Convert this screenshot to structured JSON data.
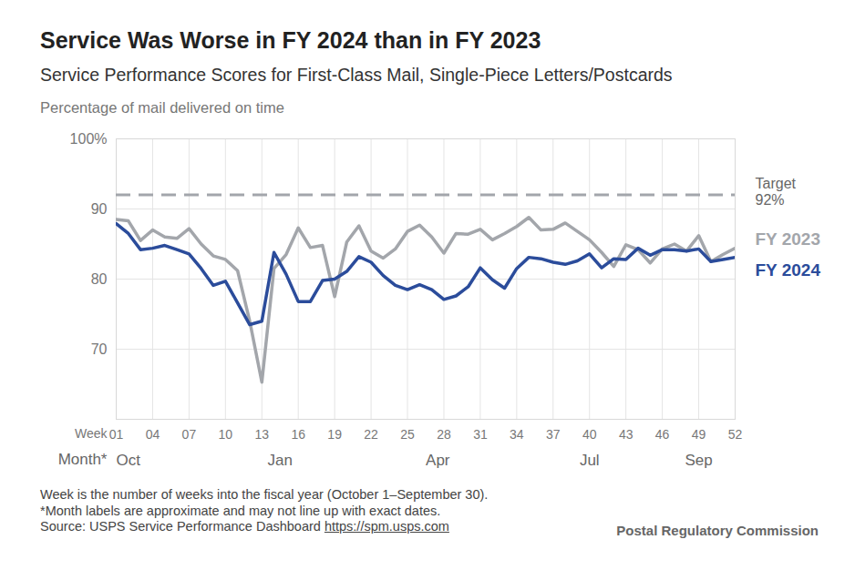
{
  "chart_data": {
    "type": "line",
    "title": "Service Was Worse in FY 2024 than in FY 2023",
    "subtitle": "Service Performance Scores for First-Class Mail, Single-Piece Letters/Postcards",
    "y_label": "Percentage of mail delivered on time",
    "x_label": "Week",
    "x": [
      1,
      2,
      3,
      4,
      5,
      6,
      7,
      8,
      9,
      10,
      11,
      12,
      13,
      14,
      15,
      16,
      17,
      18,
      19,
      20,
      21,
      22,
      23,
      24,
      25,
      26,
      27,
      28,
      29,
      30,
      31,
      32,
      33,
      34,
      35,
      36,
      37,
      38,
      39,
      40,
      41,
      42,
      43,
      44,
      45,
      46,
      47,
      48,
      49,
      50,
      51,
      52
    ],
    "series": [
      {
        "name": "FY 2023",
        "color": "#a3a6ab",
        "values": [
          88.5,
          88.3,
          85.5,
          87,
          86,
          85.8,
          87.2,
          85,
          83.3,
          82.8,
          81.2,
          74,
          65.3,
          81.5,
          83.5,
          87.3,
          84.5,
          84.8,
          77.5,
          85.3,
          87.6,
          84,
          83,
          84.3,
          86.8,
          87.7,
          86,
          83.7,
          86.5,
          86.4,
          87.1,
          85.6,
          86.5,
          87.5,
          88.8,
          87,
          87.1,
          88,
          86.8,
          85.6,
          83.8,
          81.8,
          84.9,
          84.2,
          82.3,
          84.3,
          85,
          84,
          86.2,
          82.5,
          83.5,
          84.4
        ]
      },
      {
        "name": "FY 2024",
        "color": "#2b4c9b",
        "values": [
          87.9,
          86.5,
          84.2,
          84.4,
          84.8,
          84.2,
          83.6,
          81.5,
          79.1,
          79.7,
          76.6,
          73.5,
          74,
          83.8,
          80.7,
          76.8,
          76.8,
          79.8,
          80,
          81.1,
          83.2,
          82.4,
          80.5,
          79.1,
          78.5,
          79.2,
          78.5,
          77.1,
          77.6,
          78.9,
          81.6,
          79.9,
          78.7,
          81.5,
          83.1,
          82.9,
          82.4,
          82.1,
          82.6,
          83.6,
          81.6,
          82.9,
          82.8,
          84.4,
          83.4,
          84.2,
          84.2,
          84,
          84.3,
          82.5,
          82.8,
          83.1
        ]
      }
    ],
    "xlim": [
      1,
      52
    ],
    "xticks": [
      {
        "value": 1,
        "label": "01"
      },
      {
        "value": 4,
        "label": "04"
      },
      {
        "value": 7,
        "label": "07"
      },
      10,
      13,
      16,
      19,
      22,
      25,
      28,
      31,
      34,
      37,
      40,
      43,
      46,
      49,
      52
    ],
    "ylim": [
      60,
      100
    ],
    "yticks": [
      70,
      80,
      90,
      {
        "value": 100,
        "label": "100%"
      }
    ],
    "grid": true,
    "month_axis": {
      "label": "Month*",
      "ticks": [
        {
          "value": 2,
          "label": "Oct"
        },
        {
          "value": 14.5,
          "label": "Jan"
        },
        {
          "value": 27.5,
          "label": "Apr"
        },
        {
          "value": 40,
          "label": "Jul"
        },
        {
          "value": 49,
          "label": "Sep"
        }
      ]
    },
    "target": {
      "value": 92,
      "label": "Target",
      "value_label": "92%"
    },
    "notes": [
      "Week is the number of weeks into the fiscal year (October 1–September 30).",
      "*Month labels are approximate and may not line up with exact dates."
    ],
    "source": "Source: USPS Service Performance Dashboard",
    "source_url": "https://spm.usps.com",
    "credit": "Postal Regulatory Commission"
  }
}
